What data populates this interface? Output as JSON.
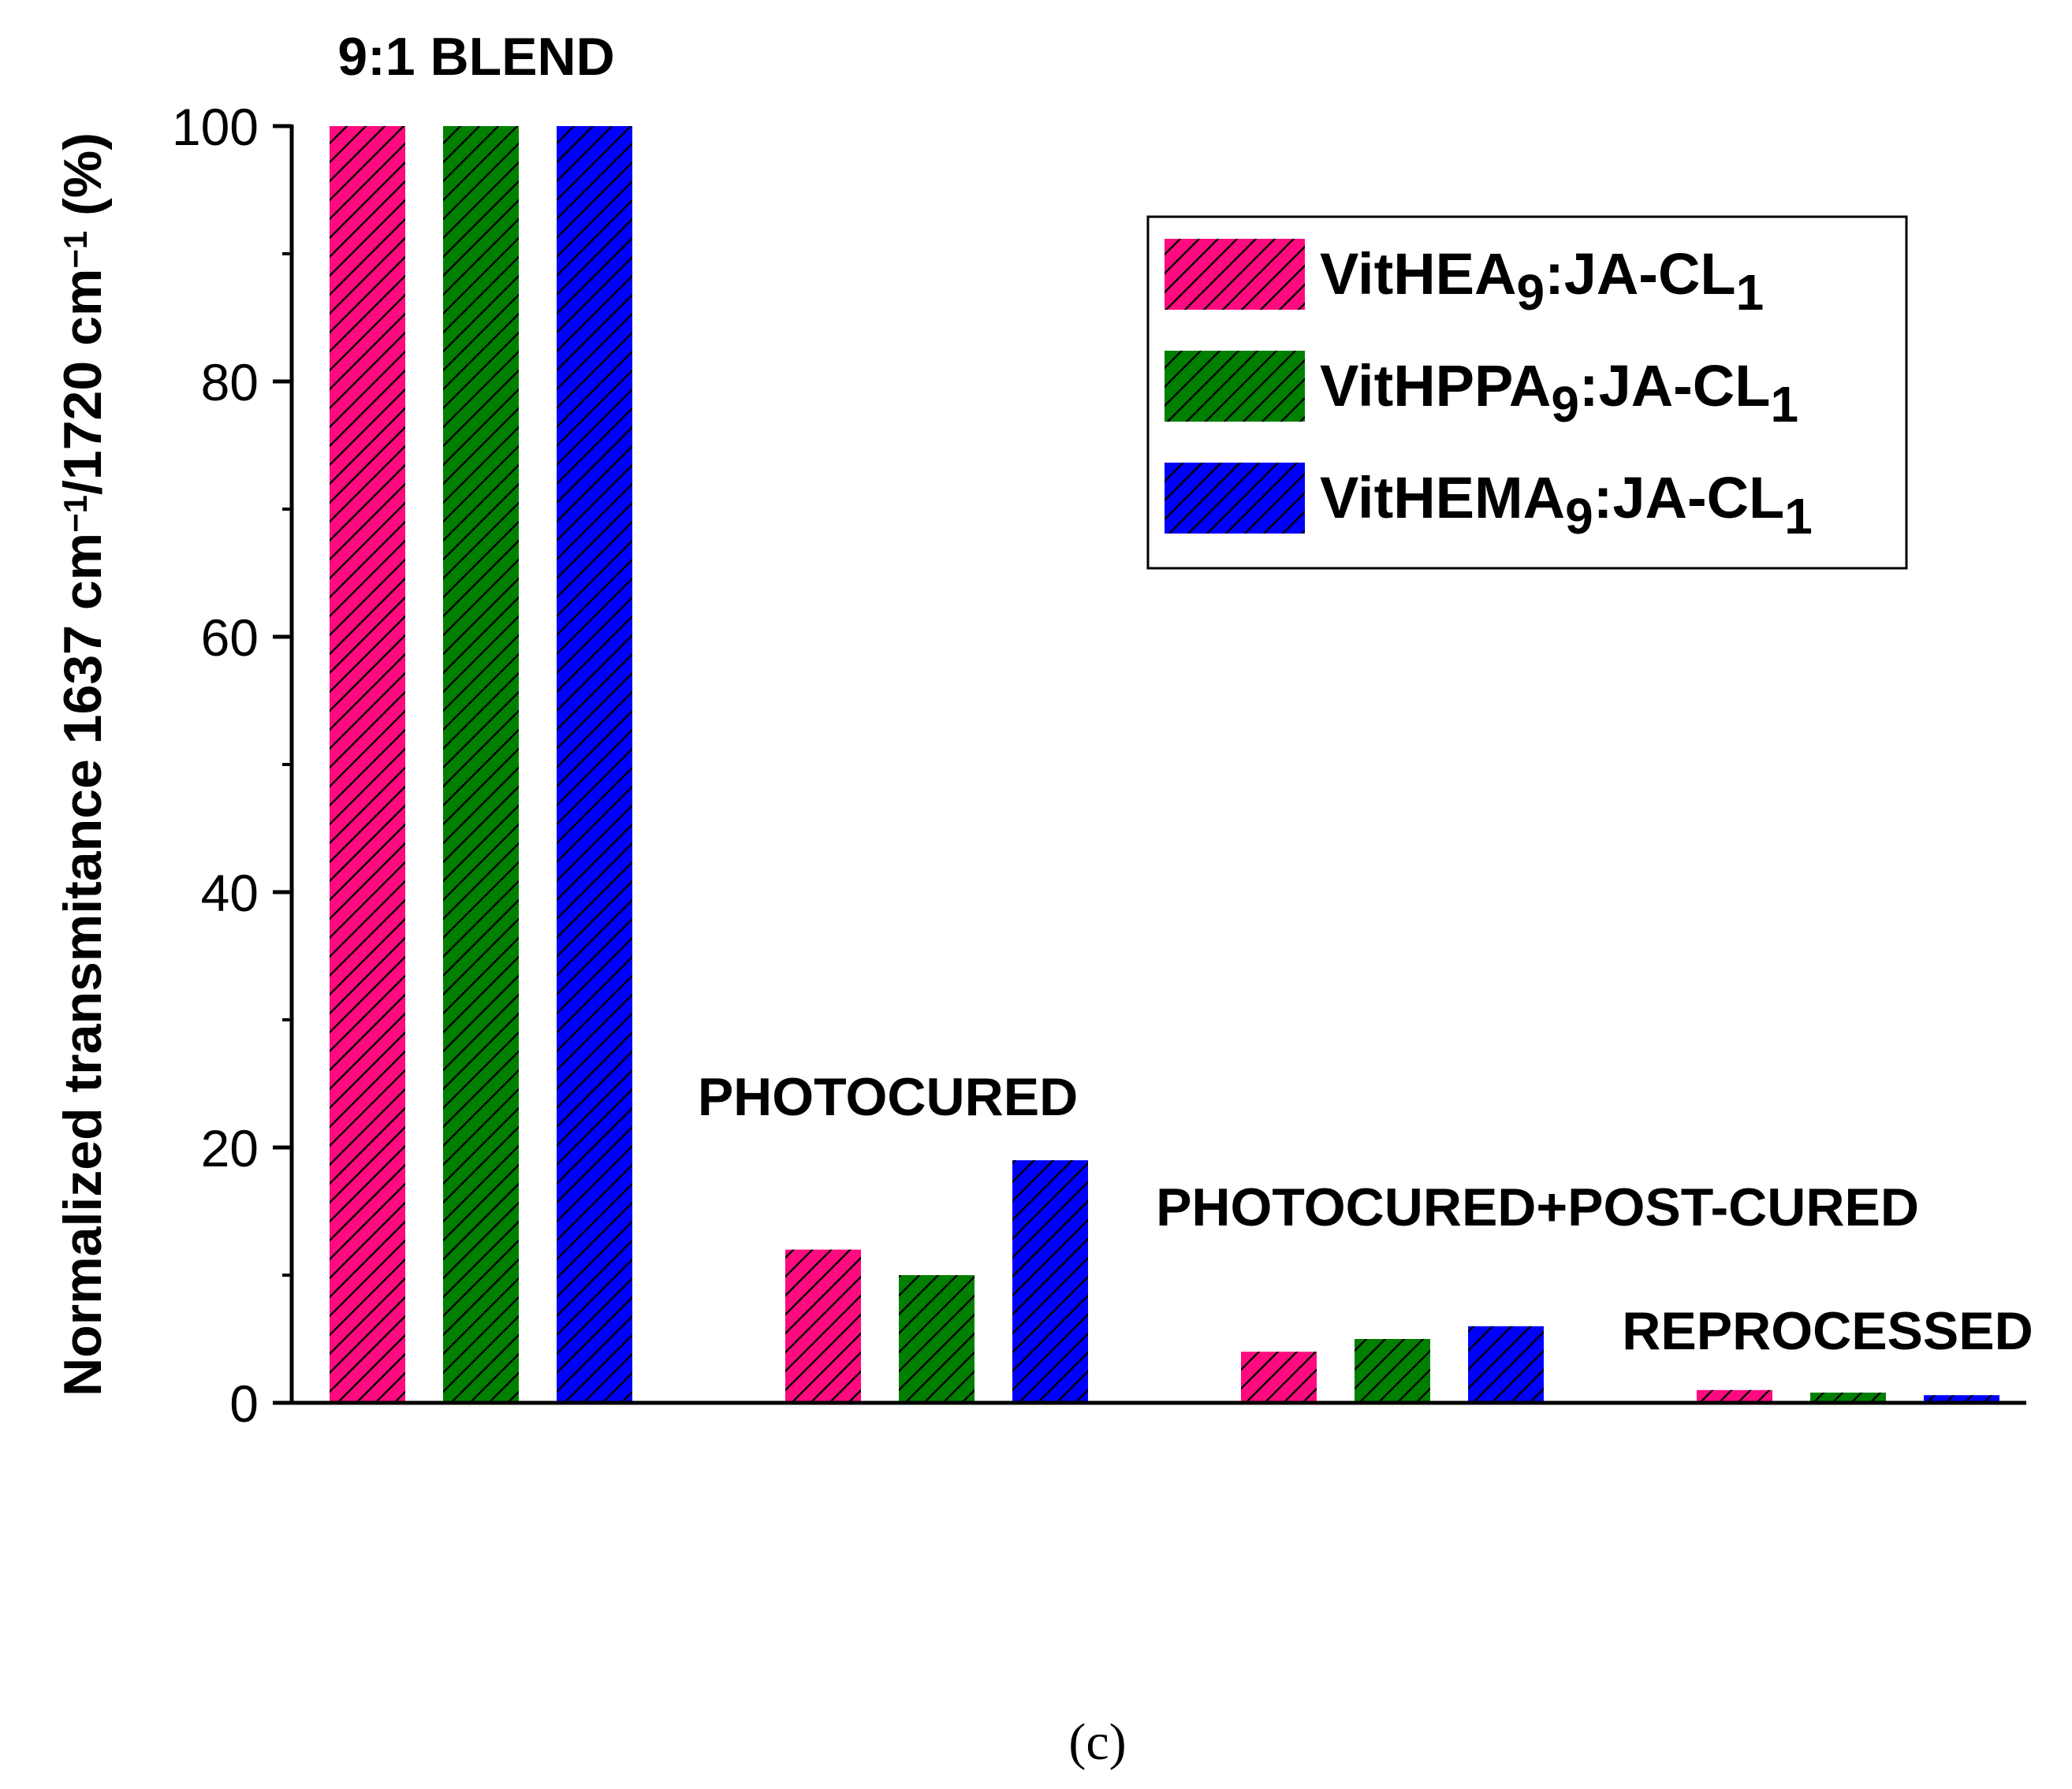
{
  "chart_data": {
    "type": "bar",
    "title": "",
    "ylabel": {
      "parts": [
        {
          "text": "Normalized transmitance 1637 cm"
        },
        {
          "text": "−1",
          "sup": true
        },
        {
          "text": "/1720 cm"
        },
        {
          "text": "−1",
          "sup": true
        },
        {
          "text": " (%)"
        }
      ]
    },
    "xlabel": "",
    "ylim": [
      0,
      100
    ],
    "yticks": [
      0,
      20,
      40,
      60,
      80,
      100
    ],
    "grid": false,
    "categories": [
      "9:1 BLEND",
      "PHOTOCURED",
      "PHOTOCURED+POST-CURED",
      "REPROCESSED"
    ],
    "series": [
      {
        "name_parts": [
          {
            "text": "VitHEA"
          },
          {
            "text": "9",
            "sub": true
          },
          {
            "text": ":JA-CL"
          },
          {
            "text": "1",
            "sub": true
          }
        ],
        "color": "#ff0a7f",
        "values": [
          100,
          12,
          4,
          1
        ]
      },
      {
        "name_parts": [
          {
            "text": "VitHPPA"
          },
          {
            "text": "9",
            "sub": true
          },
          {
            "text": ":JA-CL"
          },
          {
            "text": "1",
            "sub": true
          }
        ],
        "color": "#007f00",
        "values": [
          100,
          10,
          5,
          0.8
        ]
      },
      {
        "name_parts": [
          {
            "text": "VitHEMA"
          },
          {
            "text": "9",
            "sub": true
          },
          {
            "text": ":JA-CL"
          },
          {
            "text": "1",
            "sub": true
          }
        ],
        "color": "#0000ff",
        "values": [
          100,
          19,
          6,
          0.6
        ]
      }
    ],
    "legend_position": "top-right",
    "bar_pattern": "diagonal-hatch"
  },
  "caption": "(c)"
}
